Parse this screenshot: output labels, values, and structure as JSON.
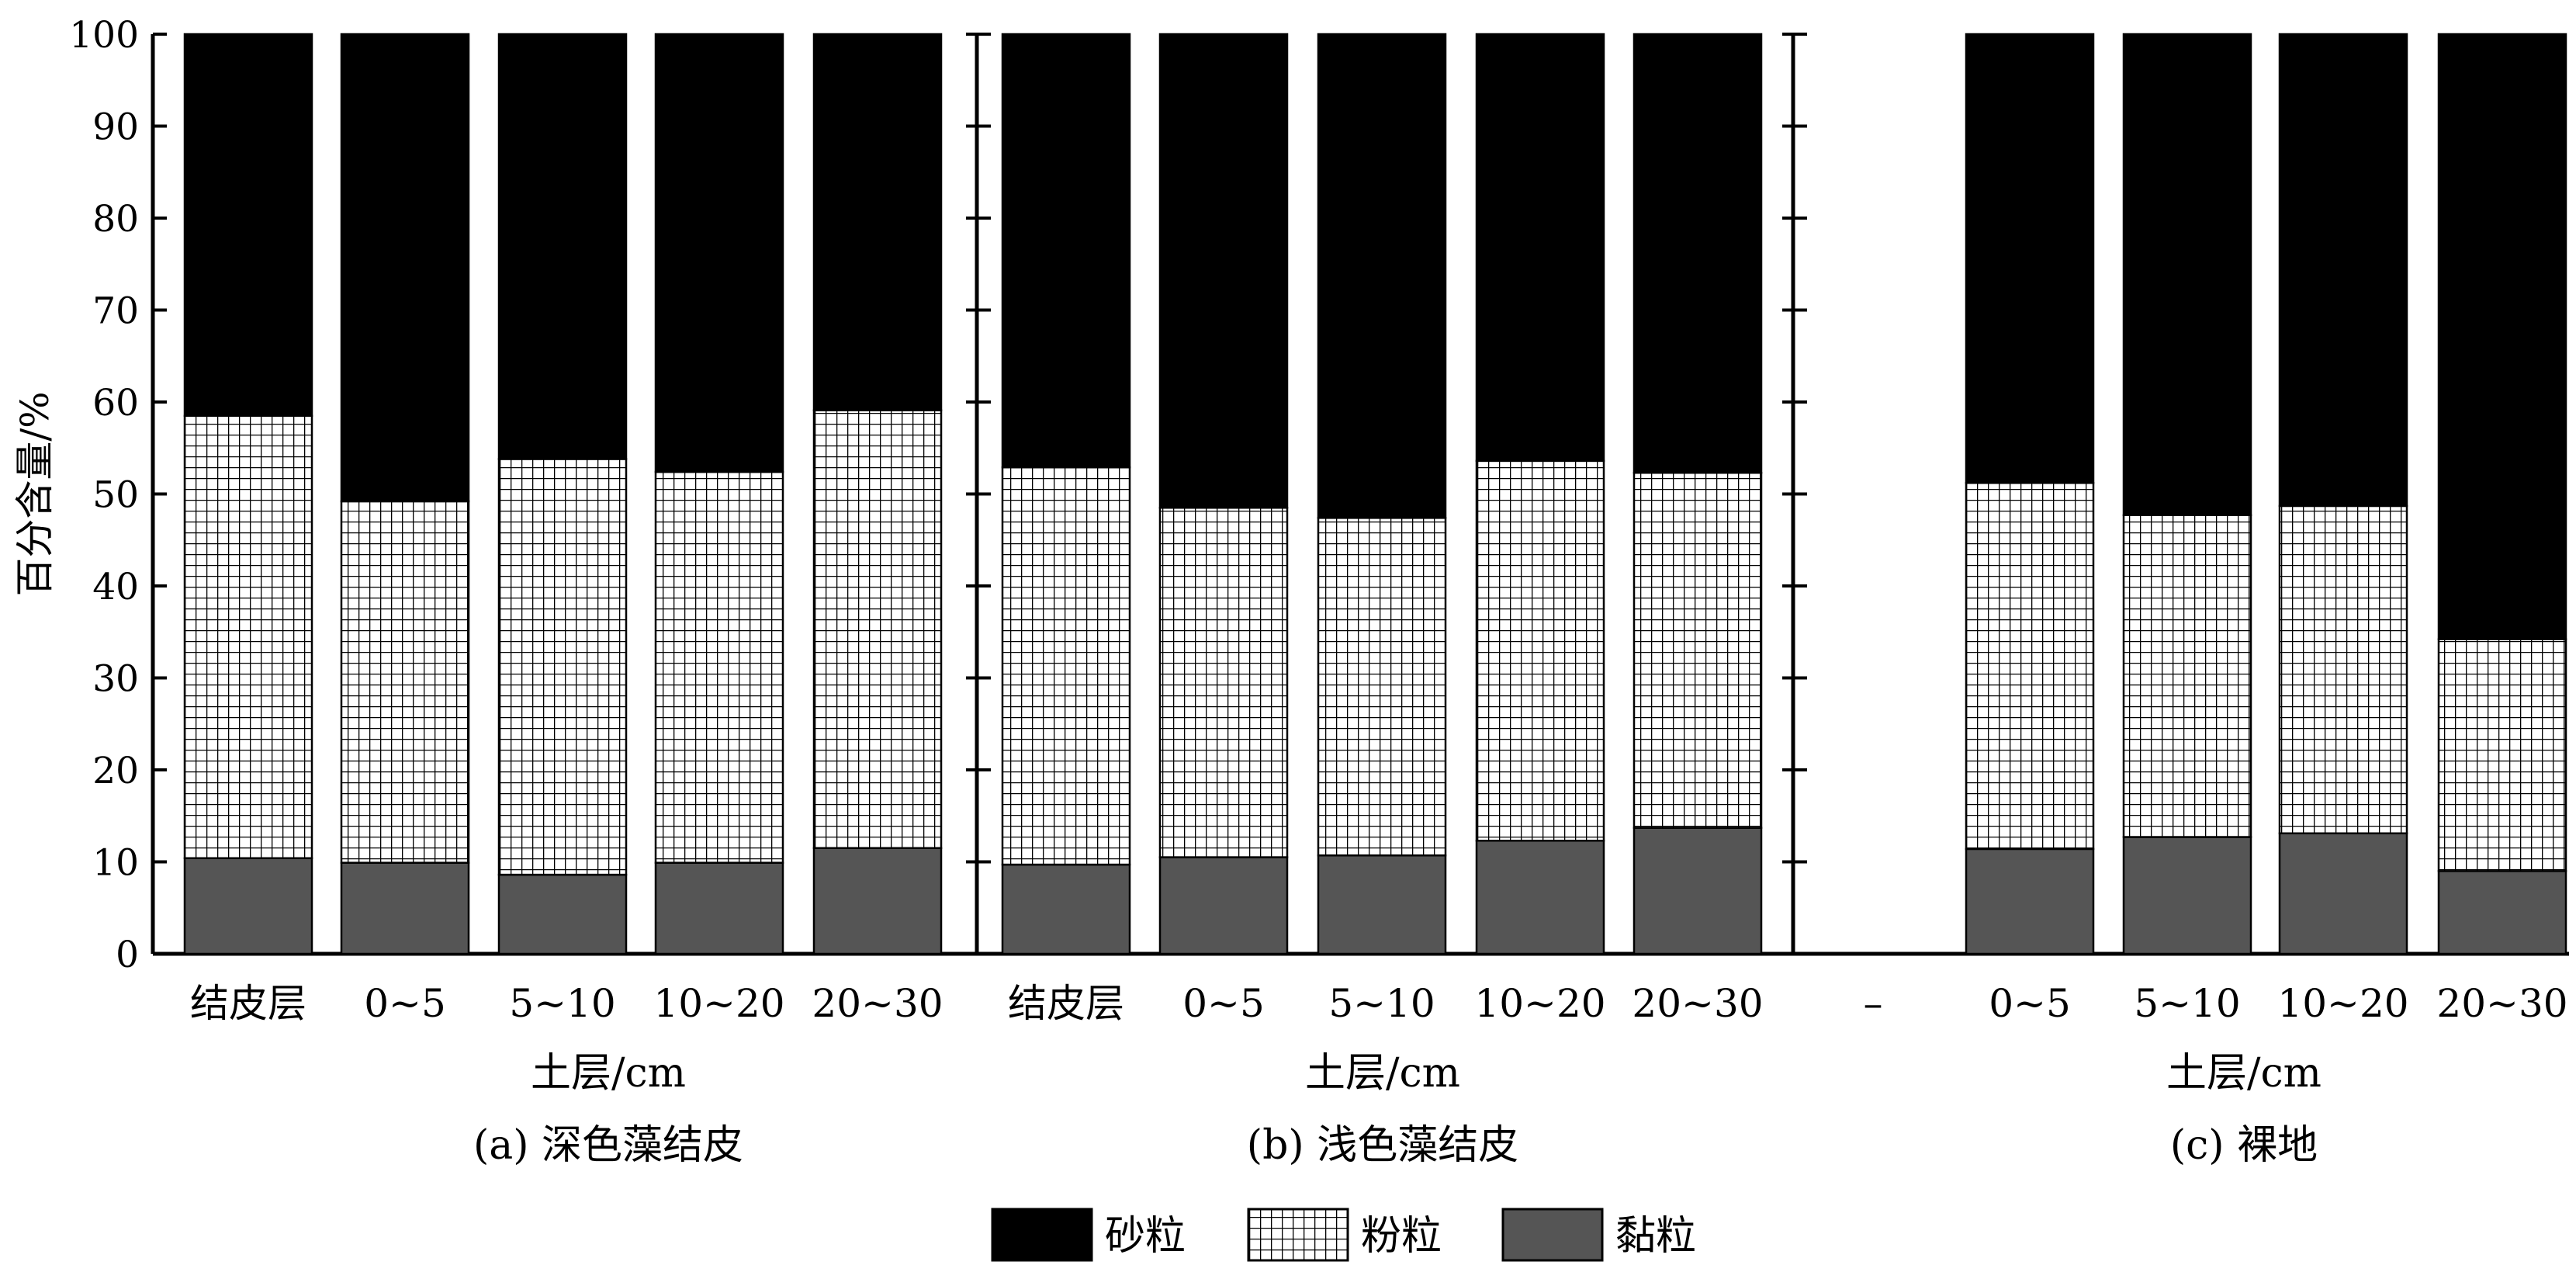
{
  "y_axis_label": "百分含量/%",
  "legend": [
    {
      "label": "砂粒",
      "pattern": "solid-black"
    },
    {
      "label": "粉粒",
      "pattern": "grid"
    },
    {
      "label": "黏粒",
      "pattern": "solid-gray"
    }
  ],
  "colors": {
    "sand": "#000000",
    "silt_bg": "#ffffff",
    "silt_grid": "#000000",
    "clay": "#555555"
  },
  "chart_data": [
    {
      "type": "bar",
      "stacked": true,
      "panel_label": "(a) 深色藻结皮",
      "xlabel": "土层/cm",
      "ylabel": "百分含量/%",
      "ylim": [
        0,
        100
      ],
      "yticks": [
        0,
        10,
        20,
        30,
        40,
        50,
        60,
        70,
        80,
        90,
        100
      ],
      "categories": [
        "结皮层",
        "0~5",
        "5~10",
        "10~20",
        "20~30"
      ],
      "series": [
        {
          "name": "黏粒",
          "values": [
            10.4,
            9.9,
            8.6,
            9.9,
            11.5
          ]
        },
        {
          "name": "粉粒",
          "values": [
            48.1,
            39.3,
            45.2,
            42.5,
            47.6
          ]
        },
        {
          "name": "砂粒",
          "values": [
            41.5,
            50.8,
            46.2,
            47.6,
            40.9
          ]
        }
      ]
    },
    {
      "type": "bar",
      "stacked": true,
      "panel_label": "(b) 浅色藻结皮",
      "xlabel": "土层/cm",
      "ylabel": "百分含量/%",
      "ylim": [
        0,
        100
      ],
      "categories": [
        "结皮层",
        "0~5",
        "5~10",
        "10~20",
        "20~30"
      ],
      "series": [
        {
          "name": "黏粒",
          "values": [
            9.7,
            10.5,
            10.7,
            12.3,
            13.7
          ]
        },
        {
          "name": "粉粒",
          "values": [
            43.2,
            38.0,
            36.7,
            41.3,
            38.6
          ]
        },
        {
          "name": "砂粒",
          "values": [
            47.1,
            51.5,
            52.6,
            46.4,
            47.7
          ]
        }
      ]
    },
    {
      "type": "bar",
      "stacked": true,
      "panel_label": "(c) 裸地",
      "xlabel": "土层/cm",
      "ylabel": "百分含量/%",
      "ylim": [
        0,
        100
      ],
      "categories": [
        "–",
        "0~5",
        "5~10",
        "10~20",
        "20~30"
      ],
      "series": [
        {
          "name": "黏粒",
          "values": [
            null,
            11.4,
            12.7,
            13.1,
            9.0
          ]
        },
        {
          "name": "粉粒",
          "values": [
            null,
            39.8,
            35.0,
            35.6,
            25.2
          ]
        },
        {
          "name": "砂粒",
          "values": [
            null,
            48.8,
            52.3,
            51.3,
            65.8
          ]
        }
      ]
    }
  ]
}
